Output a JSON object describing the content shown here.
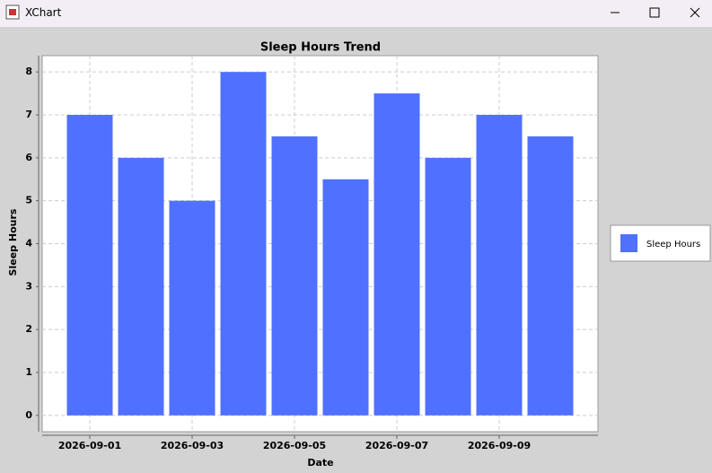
{
  "window": {
    "title": "XChart"
  },
  "chart_data": {
    "type": "bar",
    "title": "Sleep Hours Trend",
    "x_label": "Date",
    "y_label": "Sleep Hours",
    "categories": [
      "2026-09-01",
      null,
      "2026-09-03",
      null,
      "2026-09-05",
      null,
      "2026-09-07",
      null,
      "2026-09-09",
      null
    ],
    "series": [
      {
        "name": "Sleep Hours",
        "color": "#5070ff",
        "values": [
          7,
          6,
          5,
          8,
          6.5,
          5.5,
          7.5,
          6,
          7,
          6.5
        ]
      }
    ],
    "ylim": [
      -0.38,
      8.38
    ],
    "yticks": [
      0,
      1,
      2,
      3,
      4,
      5,
      6,
      7,
      8
    ],
    "grid": true,
    "legend": "right"
  }
}
